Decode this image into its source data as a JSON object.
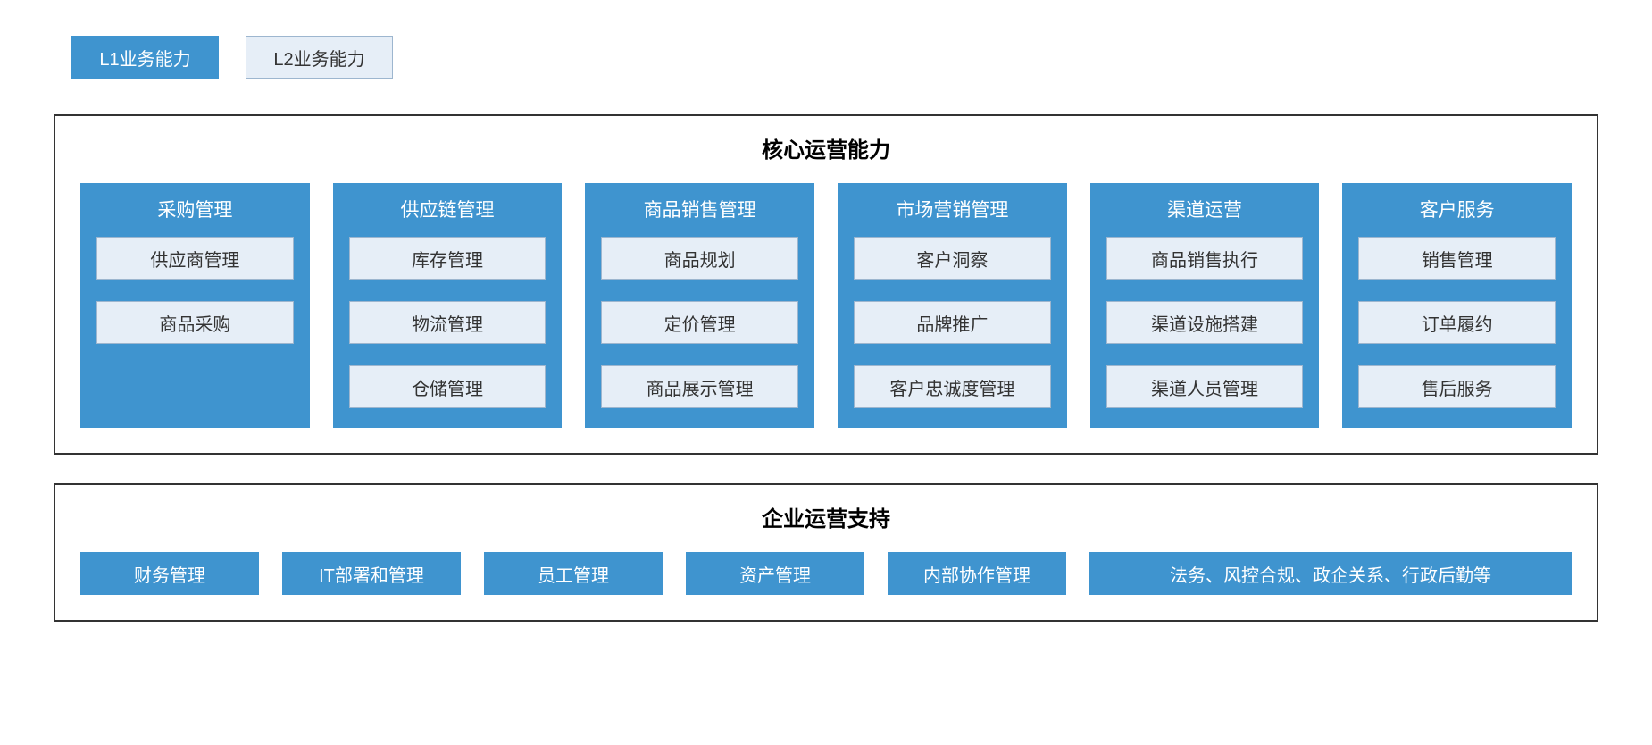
{
  "colors": {
    "l1_bg": "#3f94cf",
    "l1_text": "#ffffff",
    "l2_bg": "#e6eef7",
    "l2_border": "#9db6cf",
    "l2_text": "#333333",
    "panel_border": "#333333",
    "page_bg": "#ffffff"
  },
  "legend": {
    "l1": "L1业务能力",
    "l2": "L2业务能力"
  },
  "core": {
    "title": "核心运营能力",
    "columns": [
      {
        "title": "采购管理",
        "items": [
          "供应商管理",
          "商品采购"
        ]
      },
      {
        "title": "供应链管理",
        "items": [
          "库存管理",
          "物流管理",
          "仓储管理"
        ]
      },
      {
        "title": "商品销售管理",
        "items": [
          "商品规划",
          "定价管理",
          "商品展示管理"
        ]
      },
      {
        "title": "市场营销管理",
        "items": [
          "客户洞察",
          "品牌推广",
          "客户忠诚度管理"
        ]
      },
      {
        "title": "渠道运营",
        "items": [
          "商品销售执行",
          "渠道设施搭建",
          "渠道人员管理"
        ]
      },
      {
        "title": "客户服务",
        "items": [
          "销售管理",
          "订单履约",
          "售后服务"
        ]
      }
    ]
  },
  "support": {
    "title": "企业运营支持",
    "items": [
      {
        "label": "财务管理",
        "wide": false
      },
      {
        "label": "IT部署和管理",
        "wide": false
      },
      {
        "label": "员工管理",
        "wide": false
      },
      {
        "label": "资产管理",
        "wide": false
      },
      {
        "label": "内部协作管理",
        "wide": false
      },
      {
        "label": "法务、风控合规、政企关系、行政后勤等",
        "wide": true
      }
    ]
  }
}
